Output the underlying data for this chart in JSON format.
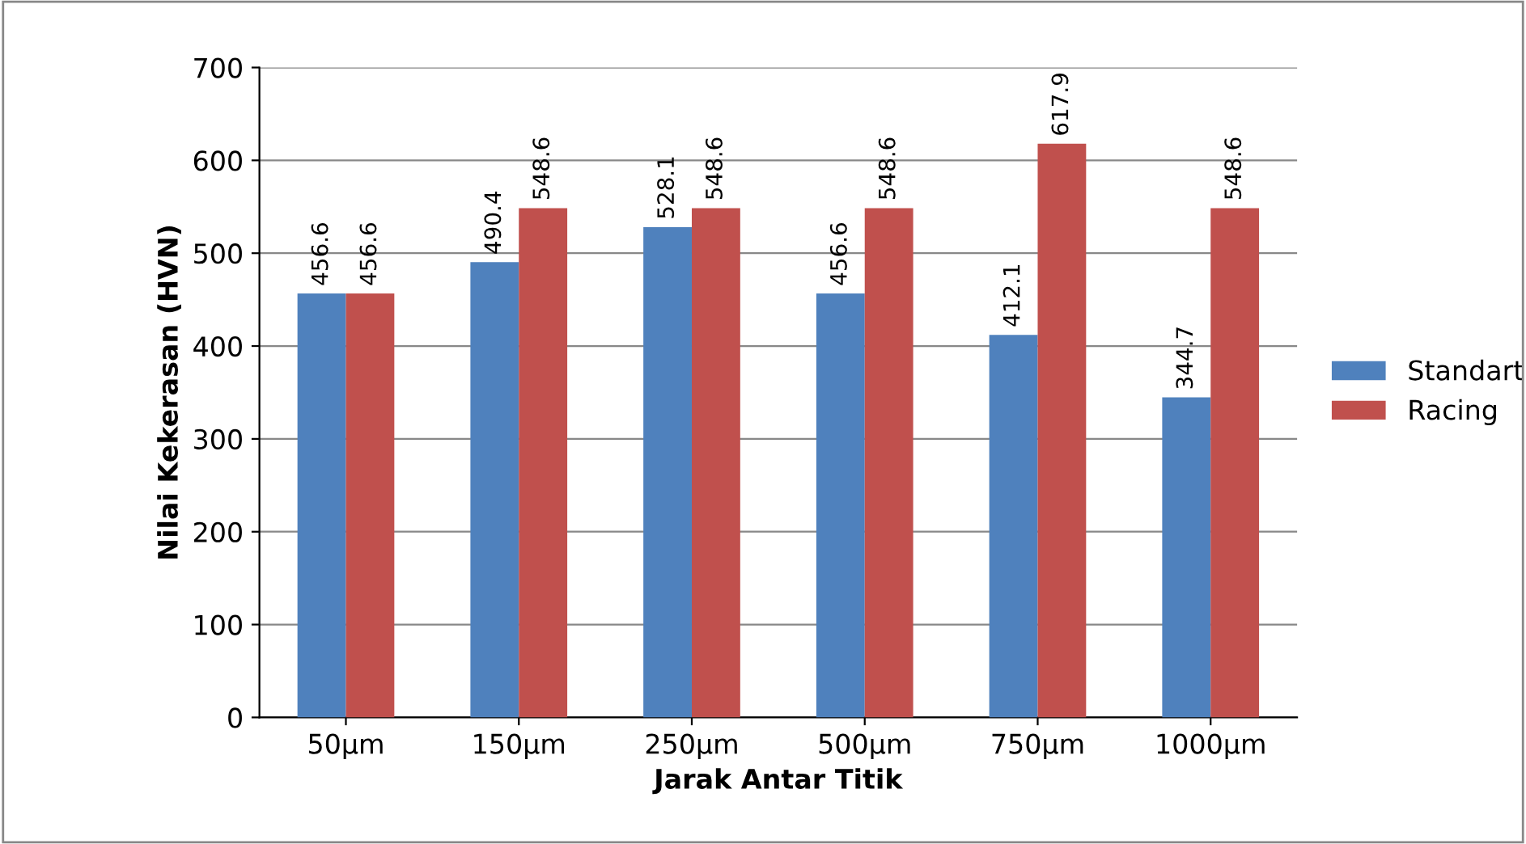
{
  "chart_data": {
    "type": "bar",
    "xlabel": "Jarak Antar Titik",
    "ylabel": "Nilai Kekerasan (HVN)",
    "categories": [
      "50µm",
      "150µm",
      "250µm",
      "500µm",
      "750µm",
      "1000µm"
    ],
    "series": [
      {
        "name": "Standart",
        "color": "#4f81bd",
        "values": [
          456.6,
          490.4,
          528.1,
          456.6,
          412.1,
          344.7
        ]
      },
      {
        "name": "Racing",
        "color": "#c0504d",
        "values": [
          456.6,
          548.6,
          548.6,
          548.6,
          617.9,
          548.6
        ]
      }
    ],
    "ylim": [
      0,
      700
    ],
    "yticks": [
      0,
      100,
      200,
      300,
      400,
      500,
      600,
      700
    ],
    "grid": "y",
    "legend": "right",
    "data_labels": true
  }
}
